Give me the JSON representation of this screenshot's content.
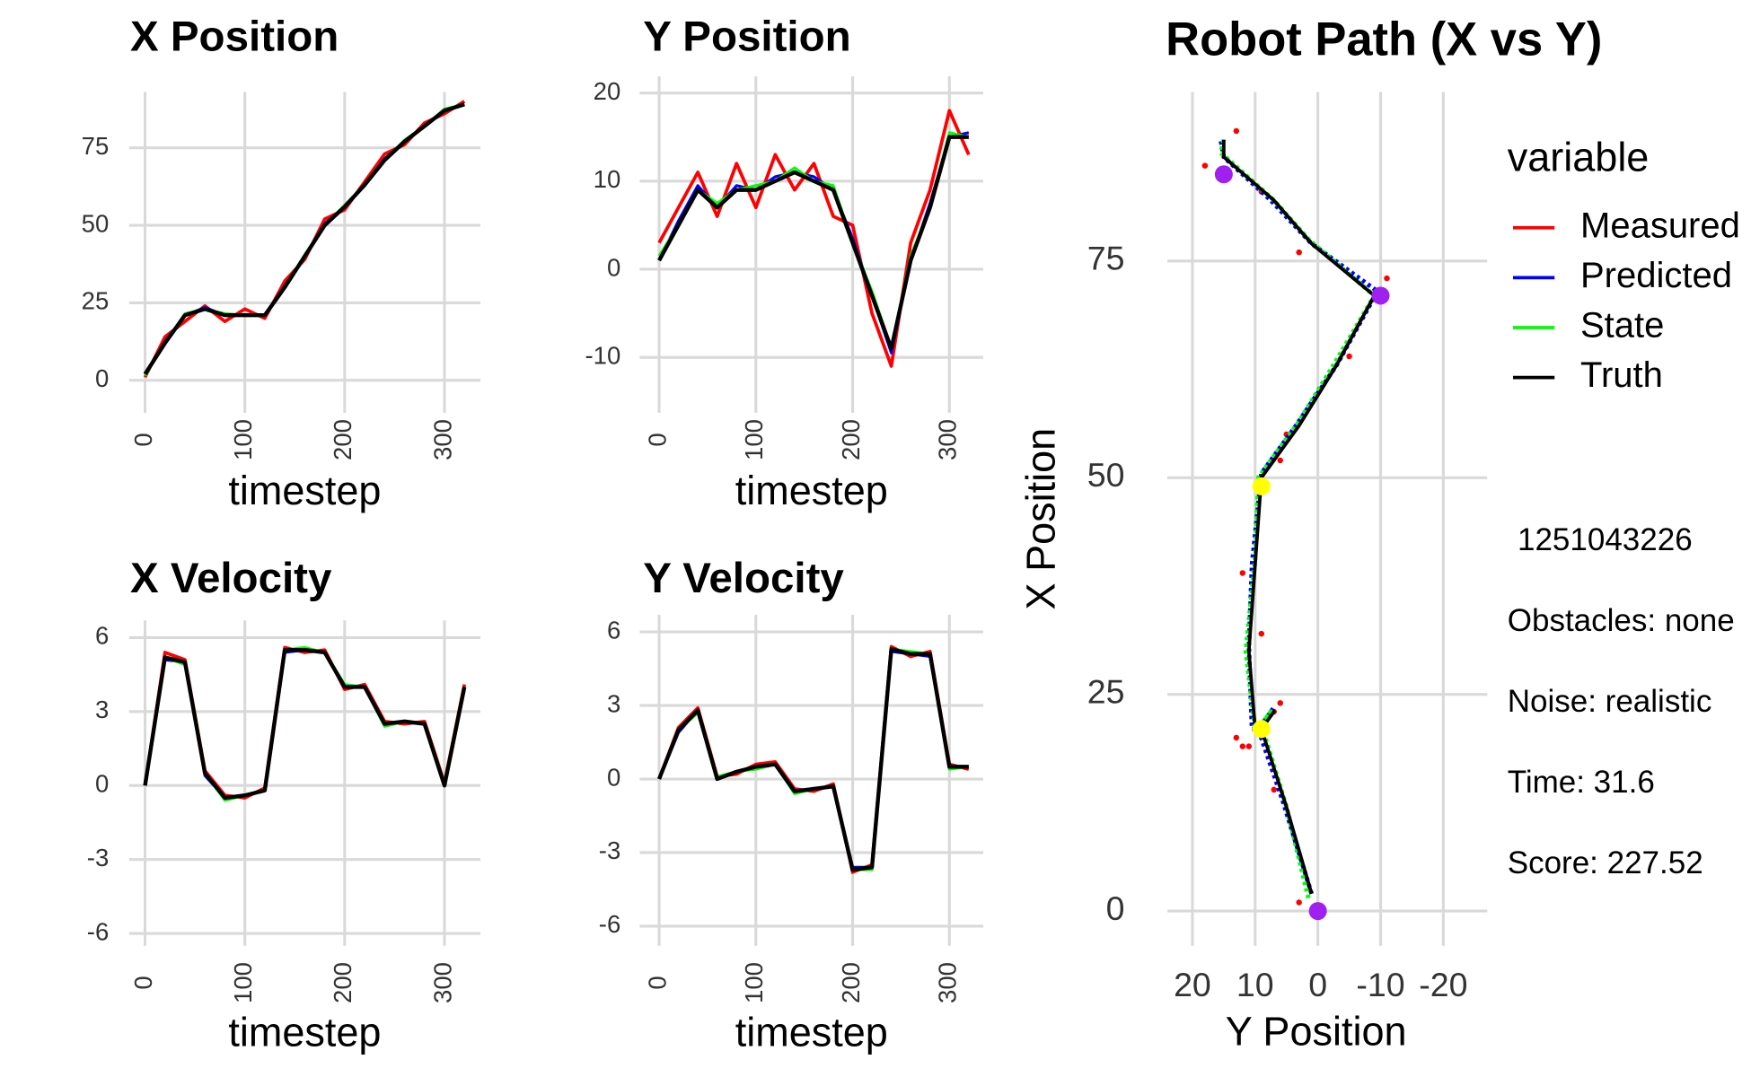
{
  "chart_data": [
    {
      "type": "line",
      "title": "X Position",
      "x_label": "timestep",
      "x": [
        0,
        20,
        40,
        60,
        80,
        100,
        120,
        140,
        160,
        180,
        200,
        220,
        240,
        260,
        280,
        300,
        320
      ],
      "xlim": [
        -16,
        336
      ],
      "xticks": [
        0,
        100,
        200,
        300
      ],
      "ylim": [
        -10.5,
        93
      ],
      "yticks": [
        0,
        25,
        50,
        75
      ],
      "grid": true,
      "series": [
        {
          "name": "Measured",
          "color": "#ff0000",
          "values": [
            1,
            14,
            19,
            24,
            19,
            23,
            20,
            32,
            39,
            52,
            55,
            64,
            73,
            76,
            83,
            86,
            90
          ]
        },
        {
          "name": "Predicted",
          "color": "#0000ff",
          "values": [
            2,
            12.5,
            21,
            23.5,
            21,
            21,
            21,
            30.5,
            40,
            50.5,
            56,
            63,
            71.5,
            77,
            82,
            87,
            89
          ]
        },
        {
          "name": "State",
          "color": "#00ff00",
          "values": [
            1.5,
            12,
            21.5,
            23,
            21.5,
            21,
            21,
            30,
            40.5,
            50,
            56.5,
            63,
            71,
            77.5,
            82,
            87.5,
            89
          ]
        },
        {
          "name": "Truth",
          "color": "#000000",
          "values": [
            2,
            12,
            21,
            23,
            21,
            21,
            21,
            30,
            40,
            50,
            56,
            63,
            71,
            77,
            82,
            87,
            89
          ]
        }
      ]
    },
    {
      "type": "line",
      "title": "Y Position",
      "x_label": "timestep",
      "x": [
        0,
        20,
        40,
        60,
        80,
        100,
        120,
        140,
        160,
        180,
        200,
        220,
        240,
        260,
        280,
        300,
        320
      ],
      "xlim": [
        -20,
        335
      ],
      "xticks": [
        0,
        100,
        200,
        300
      ],
      "ylim": [
        -16.3,
        21.9
      ],
      "yticks": [
        -10,
        0,
        10,
        20
      ],
      "grid": true,
      "series": [
        {
          "name": "Measured",
          "color": "#ff0000",
          "values": [
            3,
            7,
            11,
            6,
            12,
            7,
            13,
            9,
            12,
            6,
            5,
            -5,
            -11,
            3,
            9,
            18,
            13
          ]
        },
        {
          "name": "Predicted",
          "color": "#0000ff",
          "values": [
            1,
            5.5,
            9.5,
            7,
            9.5,
            9,
            10.5,
            11,
            10.5,
            9,
            3.5,
            -3,
            -9.5,
            1,
            7.5,
            15,
            15.5
          ]
        },
        {
          "name": "State",
          "color": "#00ff00",
          "values": [
            1.5,
            5,
            9,
            7.5,
            9,
            9.5,
            10,
            11.5,
            10,
            9.5,
            3,
            -2.5,
            -9,
            1.5,
            7,
            15.5,
            15
          ]
        },
        {
          "name": "Truth",
          "color": "#000000",
          "values": [
            1,
            5,
            9,
            7,
            9,
            9,
            10,
            11,
            10,
            9,
            3,
            -3,
            -9,
            1,
            7,
            15,
            15
          ]
        }
      ]
    },
    {
      "type": "line",
      "title": "X Velocity",
      "x_label": "timestep",
      "x": [
        0,
        20,
        40,
        60,
        80,
        100,
        120,
        140,
        160,
        180,
        200,
        220,
        240,
        260,
        280,
        300,
        320
      ],
      "xlim": [
        -16,
        336
      ],
      "xticks": [
        0,
        100,
        200,
        300
      ],
      "ylim": [
        -6.5,
        6.7
      ],
      "yticks": [
        -6,
        -3,
        0,
        3,
        6
      ],
      "grid": true,
      "series": [
        {
          "name": "Measured",
          "color": "#ff0000",
          "values": [
            0,
            5.4,
            5.1,
            0.6,
            -0.4,
            -0.5,
            -0.1,
            5.6,
            5.4,
            5.5,
            3.9,
            4.1,
            2.6,
            2.5,
            2.6,
            0.1,
            4.1
          ]
        },
        {
          "name": "Predicted",
          "color": "#0000ff",
          "values": [
            0,
            5.1,
            5,
            0.4,
            -0.5,
            -0.4,
            -0.2,
            5.4,
            5.5,
            5.4,
            4,
            4,
            2.5,
            2.6,
            2.5,
            0,
            3.9
          ]
        },
        {
          "name": "State",
          "color": "#00ff00",
          "values": [
            0,
            5.2,
            4.9,
            0.5,
            -0.6,
            -0.4,
            -0.2,
            5.5,
            5.6,
            5.4,
            4.1,
            4,
            2.4,
            2.6,
            2.5,
            0.1,
            4
          ]
        },
        {
          "name": "Truth",
          "color": "#000000",
          "values": [
            0,
            5.2,
            5,
            0.5,
            -0.5,
            -0.4,
            -0.2,
            5.5,
            5.5,
            5.4,
            4,
            4,
            2.5,
            2.6,
            2.5,
            0,
            4
          ]
        }
      ]
    },
    {
      "type": "line",
      "title": "Y Velocity",
      "x_label": "timestep",
      "x": [
        0,
        20,
        40,
        60,
        80,
        100,
        120,
        140,
        160,
        180,
        200,
        220,
        240,
        260,
        280,
        300,
        320
      ],
      "xlim": [
        -20,
        335
      ],
      "xticks": [
        0,
        100,
        200,
        300
      ],
      "ylim": [
        -6.8,
        6.7
      ],
      "yticks": [
        -6,
        -3,
        0,
        3,
        6
      ],
      "grid": true,
      "series": [
        {
          "name": "Measured",
          "color": "#ff0000",
          "values": [
            0,
            2.1,
            2.9,
            0.1,
            0.2,
            0.6,
            0.7,
            -0.4,
            -0.5,
            -0.2,
            -3.8,
            -3.5,
            5.4,
            5,
            5.2,
            0.6,
            0.4
          ]
        },
        {
          "name": "Predicted",
          "color": "#0000ff",
          "values": [
            0,
            1.9,
            2.8,
            0,
            0.3,
            0.5,
            0.6,
            -0.5,
            -0.4,
            -0.3,
            -3.6,
            -3.6,
            5.2,
            5.1,
            5,
            0.5,
            0.5
          ]
        },
        {
          "name": "State",
          "color": "#00ff00",
          "values": [
            0,
            2,
            2.7,
            0.1,
            0.3,
            0.4,
            0.6,
            -0.6,
            -0.4,
            -0.3,
            -3.7,
            -3.7,
            5.3,
            5.2,
            5.1,
            0.4,
            0.5
          ]
        },
        {
          "name": "Truth",
          "color": "#000000",
          "values": [
            0,
            2,
            2.8,
            0,
            0.3,
            0.5,
            0.6,
            -0.5,
            -0.4,
            -0.3,
            -3.7,
            -3.6,
            5.3,
            5.1,
            5.1,
            0.5,
            0.5
          ]
        }
      ]
    },
    {
      "type": "path",
      "title": "Robot Path (X vs Y)",
      "x_label": "Y Position",
      "y_label": "X Position",
      "xlim": [
        24,
        -27
      ],
      "xticks": [
        20,
        10,
        0,
        -10,
        -20
      ],
      "ylim": [
        -4,
        94.5
      ],
      "yticks": [
        0,
        25,
        50,
        75
      ],
      "grid": true,
      "legend_title": "variable",
      "series": [
        {
          "name": "Measured",
          "color": "#ff0000",
          "x": [
            3,
            7,
            11,
            6,
            12,
            7,
            13,
            9,
            12,
            6,
            5,
            -5,
            -11,
            3,
            9,
            18,
            13
          ],
          "y": [
            1,
            14,
            19,
            24,
            19,
            23,
            20,
            32,
            39,
            52,
            55,
            64,
            73,
            76,
            83,
            86,
            90
          ]
        },
        {
          "name": "Predicted",
          "color": "#0000ff",
          "x": [
            1,
            5.5,
            9.5,
            7,
            9.5,
            9,
            10.5,
            11,
            10.5,
            9,
            3.5,
            -3,
            -9.5,
            1,
            7.5,
            15,
            15.5
          ],
          "y": [
            2,
            12.5,
            21,
            23.5,
            21,
            21,
            21,
            30.5,
            40,
            50.5,
            56,
            63,
            71.5,
            77,
            82,
            87,
            89
          ]
        },
        {
          "name": "State",
          "color": "#00ff00",
          "x": [
            1.5,
            5,
            9,
            7.5,
            9,
            9.5,
            10,
            11.5,
            10,
            9.5,
            3,
            -2.5,
            -9,
            1.5,
            7,
            15.5,
            15
          ],
          "y": [
            1.5,
            12,
            21.5,
            23,
            21.5,
            21,
            21,
            30,
            40.5,
            50,
            56.5,
            63,
            71,
            77.5,
            82,
            87.5,
            89
          ]
        },
        {
          "name": "Truth",
          "color": "#000000",
          "x": [
            1,
            5,
            9,
            7,
            9,
            9,
            10,
            11,
            10,
            9,
            3,
            -3,
            -9,
            1,
            7,
            15,
            15
          ],
          "y": [
            2,
            12,
            21,
            23,
            21,
            21,
            21,
            30,
            40,
            50,
            56,
            63,
            71,
            77,
            82,
            87,
            89
          ]
        }
      ],
      "markers": [
        {
          "x": 0,
          "y": 0,
          "color": "#a020f0"
        },
        {
          "x": 9,
          "y": 21,
          "color": "#ffff00"
        },
        {
          "x": 9,
          "y": 49,
          "color": "#ffff00"
        },
        {
          "x": -10,
          "y": 71,
          "color": "#a020f0"
        },
        {
          "x": 15,
          "y": 85,
          "color": "#a020f0"
        }
      ],
      "annotations": [
        "1251043226",
        "Obstacles: none",
        "Noise: realistic",
        "Time: 31.6",
        "Score: 227.52"
      ]
    }
  ]
}
